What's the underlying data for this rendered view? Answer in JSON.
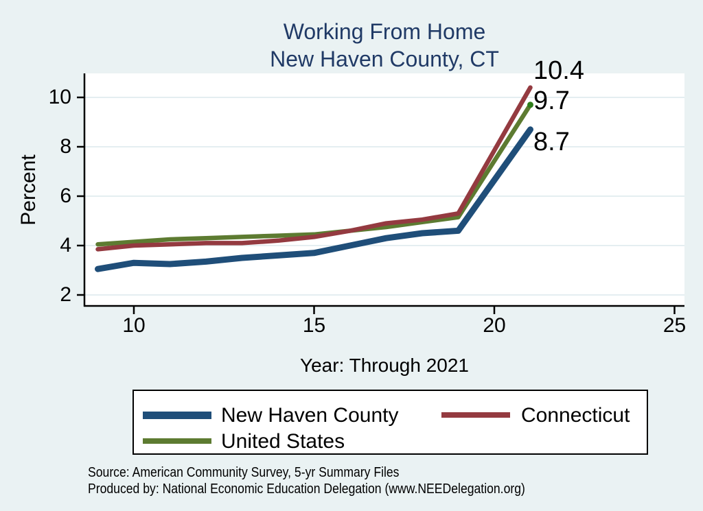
{
  "title": {
    "line1": "Working From Home",
    "line2": "New Haven County, CT"
  },
  "y_axis": {
    "title": "Percent",
    "ticks": [
      "10",
      "8",
      "6",
      "4",
      "2"
    ]
  },
  "x_axis": {
    "title": "Year: Through 2021",
    "ticks": [
      "10",
      "15",
      "20",
      "25"
    ]
  },
  "legend": {
    "items": [
      {
        "label": "New Haven County",
        "color": "#1f4e79",
        "swatch_height": 11
      },
      {
        "label": "Connecticut",
        "color": "#943a40",
        "swatch_height": 8
      },
      {
        "label": "United States",
        "color": "#5d7b31",
        "swatch_height": 8
      }
    ]
  },
  "footer": {
    "line1": "Source: American Community Survey, 5-yr Summary Files",
    "line2": "Produced by: National Economic Education Delegation (www.NEEDelegation.org)"
  },
  "colors": {
    "background": "#eaf2f3",
    "plot_background": "#ffffff",
    "gridline": "#e4eef1",
    "axis": "#000000",
    "title_text": "#203a66",
    "end_marker_green_dot": "#2e7d1a"
  },
  "chart_data": {
    "type": "line",
    "title": "Working From Home, New Haven County, CT",
    "xlabel": "Year: Through 2021",
    "ylabel": "Percent",
    "x": [
      9,
      10,
      11,
      12,
      13,
      14,
      15,
      16,
      17,
      18,
      19,
      21
    ],
    "x_ticks": [
      10,
      15,
      20,
      25
    ],
    "y_ticks": [
      2,
      4,
      6,
      8,
      10
    ],
    "xlim": [
      8.7,
      25.3
    ],
    "ylim": [
      1.6,
      11.0
    ],
    "grid": "horizontal",
    "legend_position": "bottom",
    "series": [
      {
        "name": "New Haven County",
        "color": "#1f4e79",
        "line_width": 9,
        "values": [
          3.05,
          3.3,
          3.25,
          3.35,
          3.5,
          3.6,
          3.7,
          4.0,
          4.3,
          4.5,
          4.6,
          8.7
        ],
        "end_label": "8.7"
      },
      {
        "name": "Connecticut",
        "color": "#943a40",
        "line_width": 6.5,
        "values": [
          3.85,
          4.0,
          4.05,
          4.1,
          4.1,
          4.2,
          4.35,
          4.6,
          4.9,
          5.05,
          5.3,
          10.4
        ],
        "end_label": "10.4"
      },
      {
        "name": "United States",
        "color": "#5d7b31",
        "line_width": 6.5,
        "values": [
          4.05,
          4.15,
          4.25,
          4.3,
          4.35,
          4.4,
          4.45,
          4.6,
          4.75,
          4.95,
          5.15,
          9.7
        ],
        "end_label": "9.7",
        "end_marker": "dot",
        "end_marker_color": "#2e7d1a"
      }
    ]
  }
}
